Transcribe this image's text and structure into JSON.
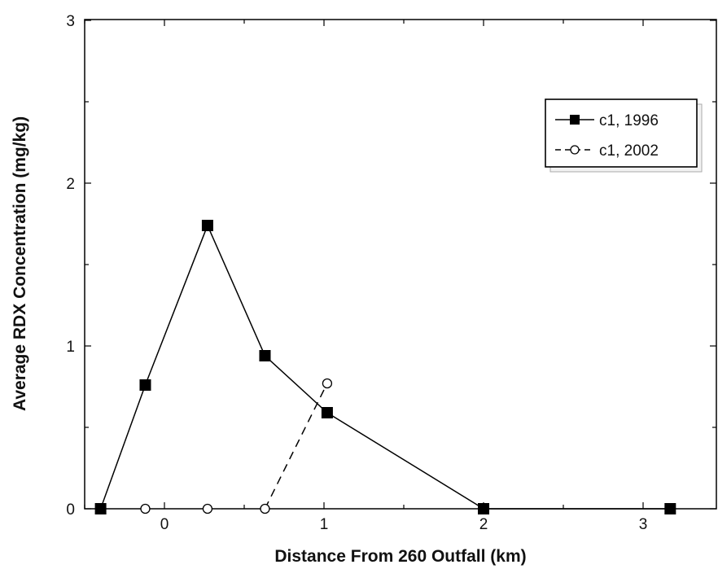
{
  "chart_data": {
    "type": "line",
    "xlabel": "Distance From 260 Outfall (km)",
    "ylabel": "Average RDX Concentration (mg/kg)",
    "xlim": [
      -0.5,
      3.5
    ],
    "ylim": [
      0,
      3
    ],
    "x_ticks": [
      0,
      1,
      2,
      3
    ],
    "x_tick_labels": [
      "0",
      "1",
      "2",
      "3"
    ],
    "y_ticks": [
      0,
      1,
      2,
      3
    ],
    "y_tick_labels": [
      "0",
      "1",
      "2",
      "3"
    ],
    "grid": false,
    "legend_position": "top-right",
    "series": [
      {
        "name": "c1, 1996",
        "style": "solid",
        "marker": "filled-square",
        "color": "#000000",
        "x": [
          -0.4,
          -0.12,
          0.27,
          0.63,
          1.02,
          2.0,
          3.17
        ],
        "y": [
          0,
          0.76,
          1.74,
          0.94,
          0.59,
          0,
          0
        ]
      },
      {
        "name": "c1, 2002",
        "style": "dashed",
        "marker": "open-circle",
        "color": "#000000",
        "x": [
          -0.12,
          0.27,
          0.63,
          1.02
        ],
        "y": [
          0,
          0,
          0,
          0.77
        ]
      }
    ]
  }
}
